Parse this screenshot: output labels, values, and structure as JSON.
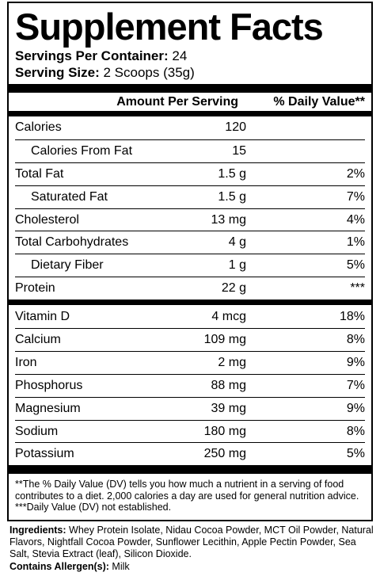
{
  "title": "Supplement Facts",
  "servings_per_container_label": "Servings Per Container:",
  "servings_per_container_value": "24",
  "serving_size_label": "Serving Size:",
  "serving_size_value": "2 Scoops (35g)",
  "header": {
    "amount_label": "Amount Per Serving",
    "dv_label": "% Daily Value**"
  },
  "rows": [
    {
      "name": "Calories",
      "amount": "120",
      "dv": ""
    },
    {
      "name": "Calories From Fat",
      "amount": "15",
      "dv": ""
    },
    {
      "name": "Total Fat",
      "amount": "1.5 g",
      "dv": "2%"
    },
    {
      "name": "Saturated Fat",
      "amount": "1.5 g",
      "dv": "7%"
    },
    {
      "name": "Cholesterol",
      "amount": "13 mg",
      "dv": "4%"
    },
    {
      "name": "Total Carbohydrates",
      "amount": "4 g",
      "dv": "1%"
    },
    {
      "name": "Dietary Fiber",
      "amount": "1 g",
      "dv": "5%"
    },
    {
      "name": "Protein",
      "amount": "22 g",
      "dv": "***"
    },
    {
      "name": "Vitamin D",
      "amount": "4 mcg",
      "dv": "18%"
    },
    {
      "name": "Calcium",
      "amount": "109 mg",
      "dv": "8%"
    },
    {
      "name": "Iron",
      "amount": "2 mg",
      "dv": "9%"
    },
    {
      "name": "Phosphorus",
      "amount": "88 mg",
      "dv": "7%"
    },
    {
      "name": "Magnesium",
      "amount": "39 mg",
      "dv": "9%"
    },
    {
      "name": "Sodium",
      "amount": "180 mg",
      "dv": "8%"
    },
    {
      "name": "Potassium",
      "amount": "250 mg",
      "dv": "5%"
    }
  ],
  "footnote_1": "**The % Daily Value (DV) tells you how much a nutrient in a serving of food contributes to a diet. 2,000 calories a day are used for general nutrition advice.",
  "footnote_2": "***Daily Value (DV) not established.",
  "ingredients_label": "Ingredients:",
  "ingredients_text": " Whey Protein Isolate, Nidau Cocoa Powder, MCT Oil Powder, Natural Flavors, Nightfall Cocoa Powder, Sunflower Lecithin, Apple Pectin Powder, Sea Salt, Stevia Extract (leaf), Silicon Dioxide.",
  "allergen_label": "Contains Allergen(s):",
  "allergen_text": " Milk"
}
